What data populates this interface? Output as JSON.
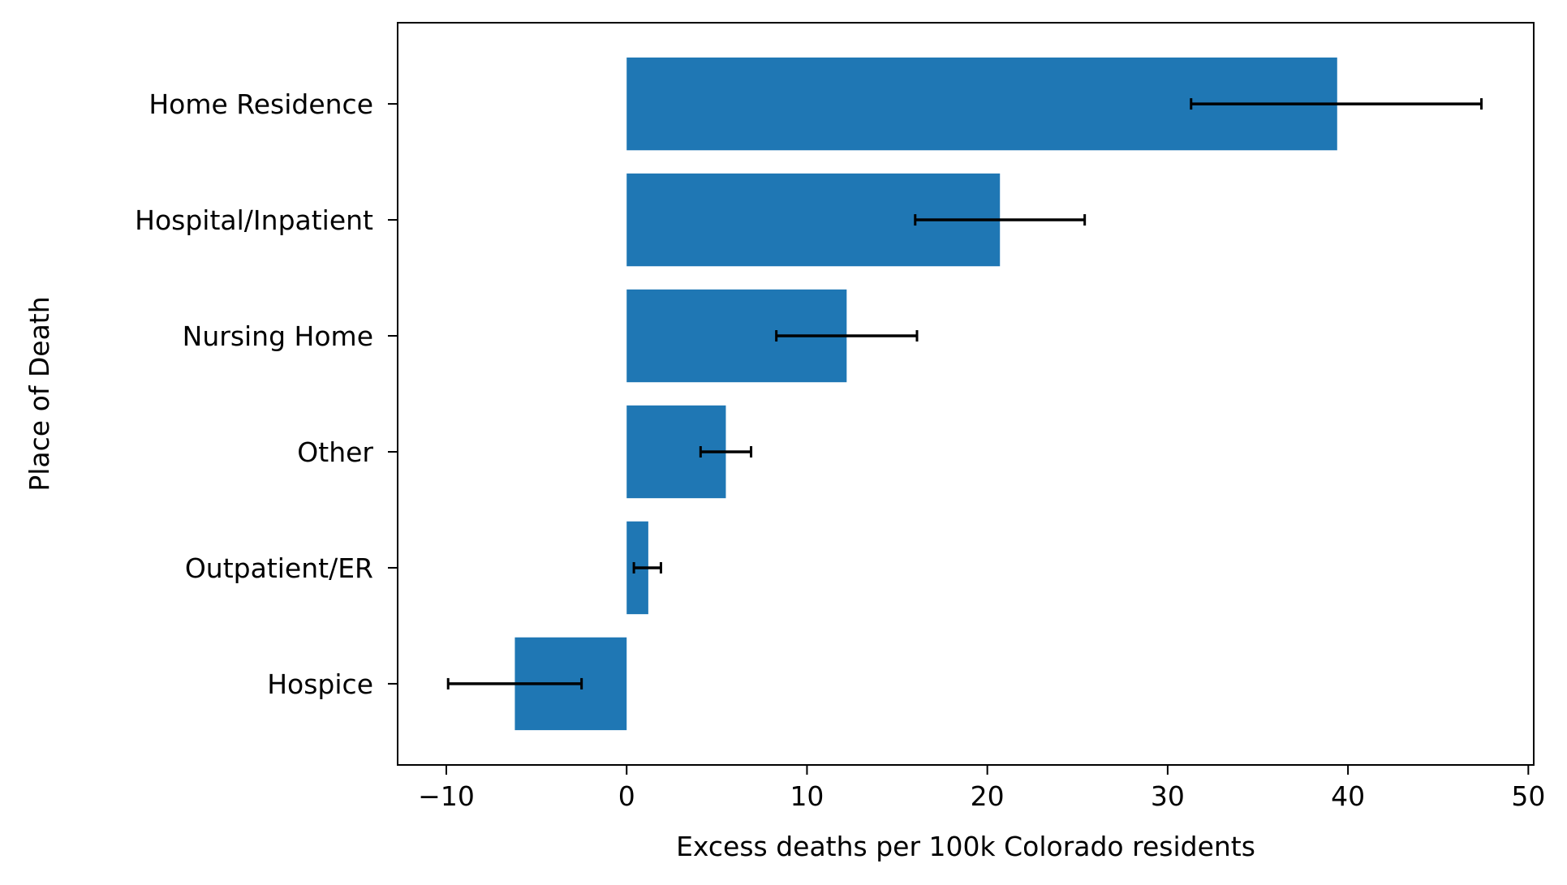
{
  "chart_data": {
    "type": "bar",
    "orientation": "horizontal",
    "title": "",
    "xlabel": "Excess deaths per 100k Colorado residents",
    "ylabel": "Place of Death",
    "xlim": [
      -12.7,
      50.3
    ],
    "xticks": [
      -10,
      0,
      10,
      20,
      30,
      40,
      50
    ],
    "xtick_labels": [
      "−10",
      "0",
      "10",
      "20",
      "30",
      "40",
      "50"
    ],
    "categories": [
      "Home Residence",
      "Hospital/Inpatient",
      "Nursing Home",
      "Other",
      "Outpatient/ER",
      "Hospice"
    ],
    "values": [
      39.4,
      20.7,
      12.2,
      5.5,
      1.2,
      -6.2
    ],
    "error_low": [
      31.3,
      16.0,
      8.3,
      4.1,
      0.4,
      -9.9
    ],
    "error_high": [
      47.4,
      25.4,
      16.1,
      6.9,
      1.9,
      -2.5
    ],
    "bar_color": "#1f77b4",
    "error_color": "#000000",
    "grid": false,
    "legend": "none"
  }
}
